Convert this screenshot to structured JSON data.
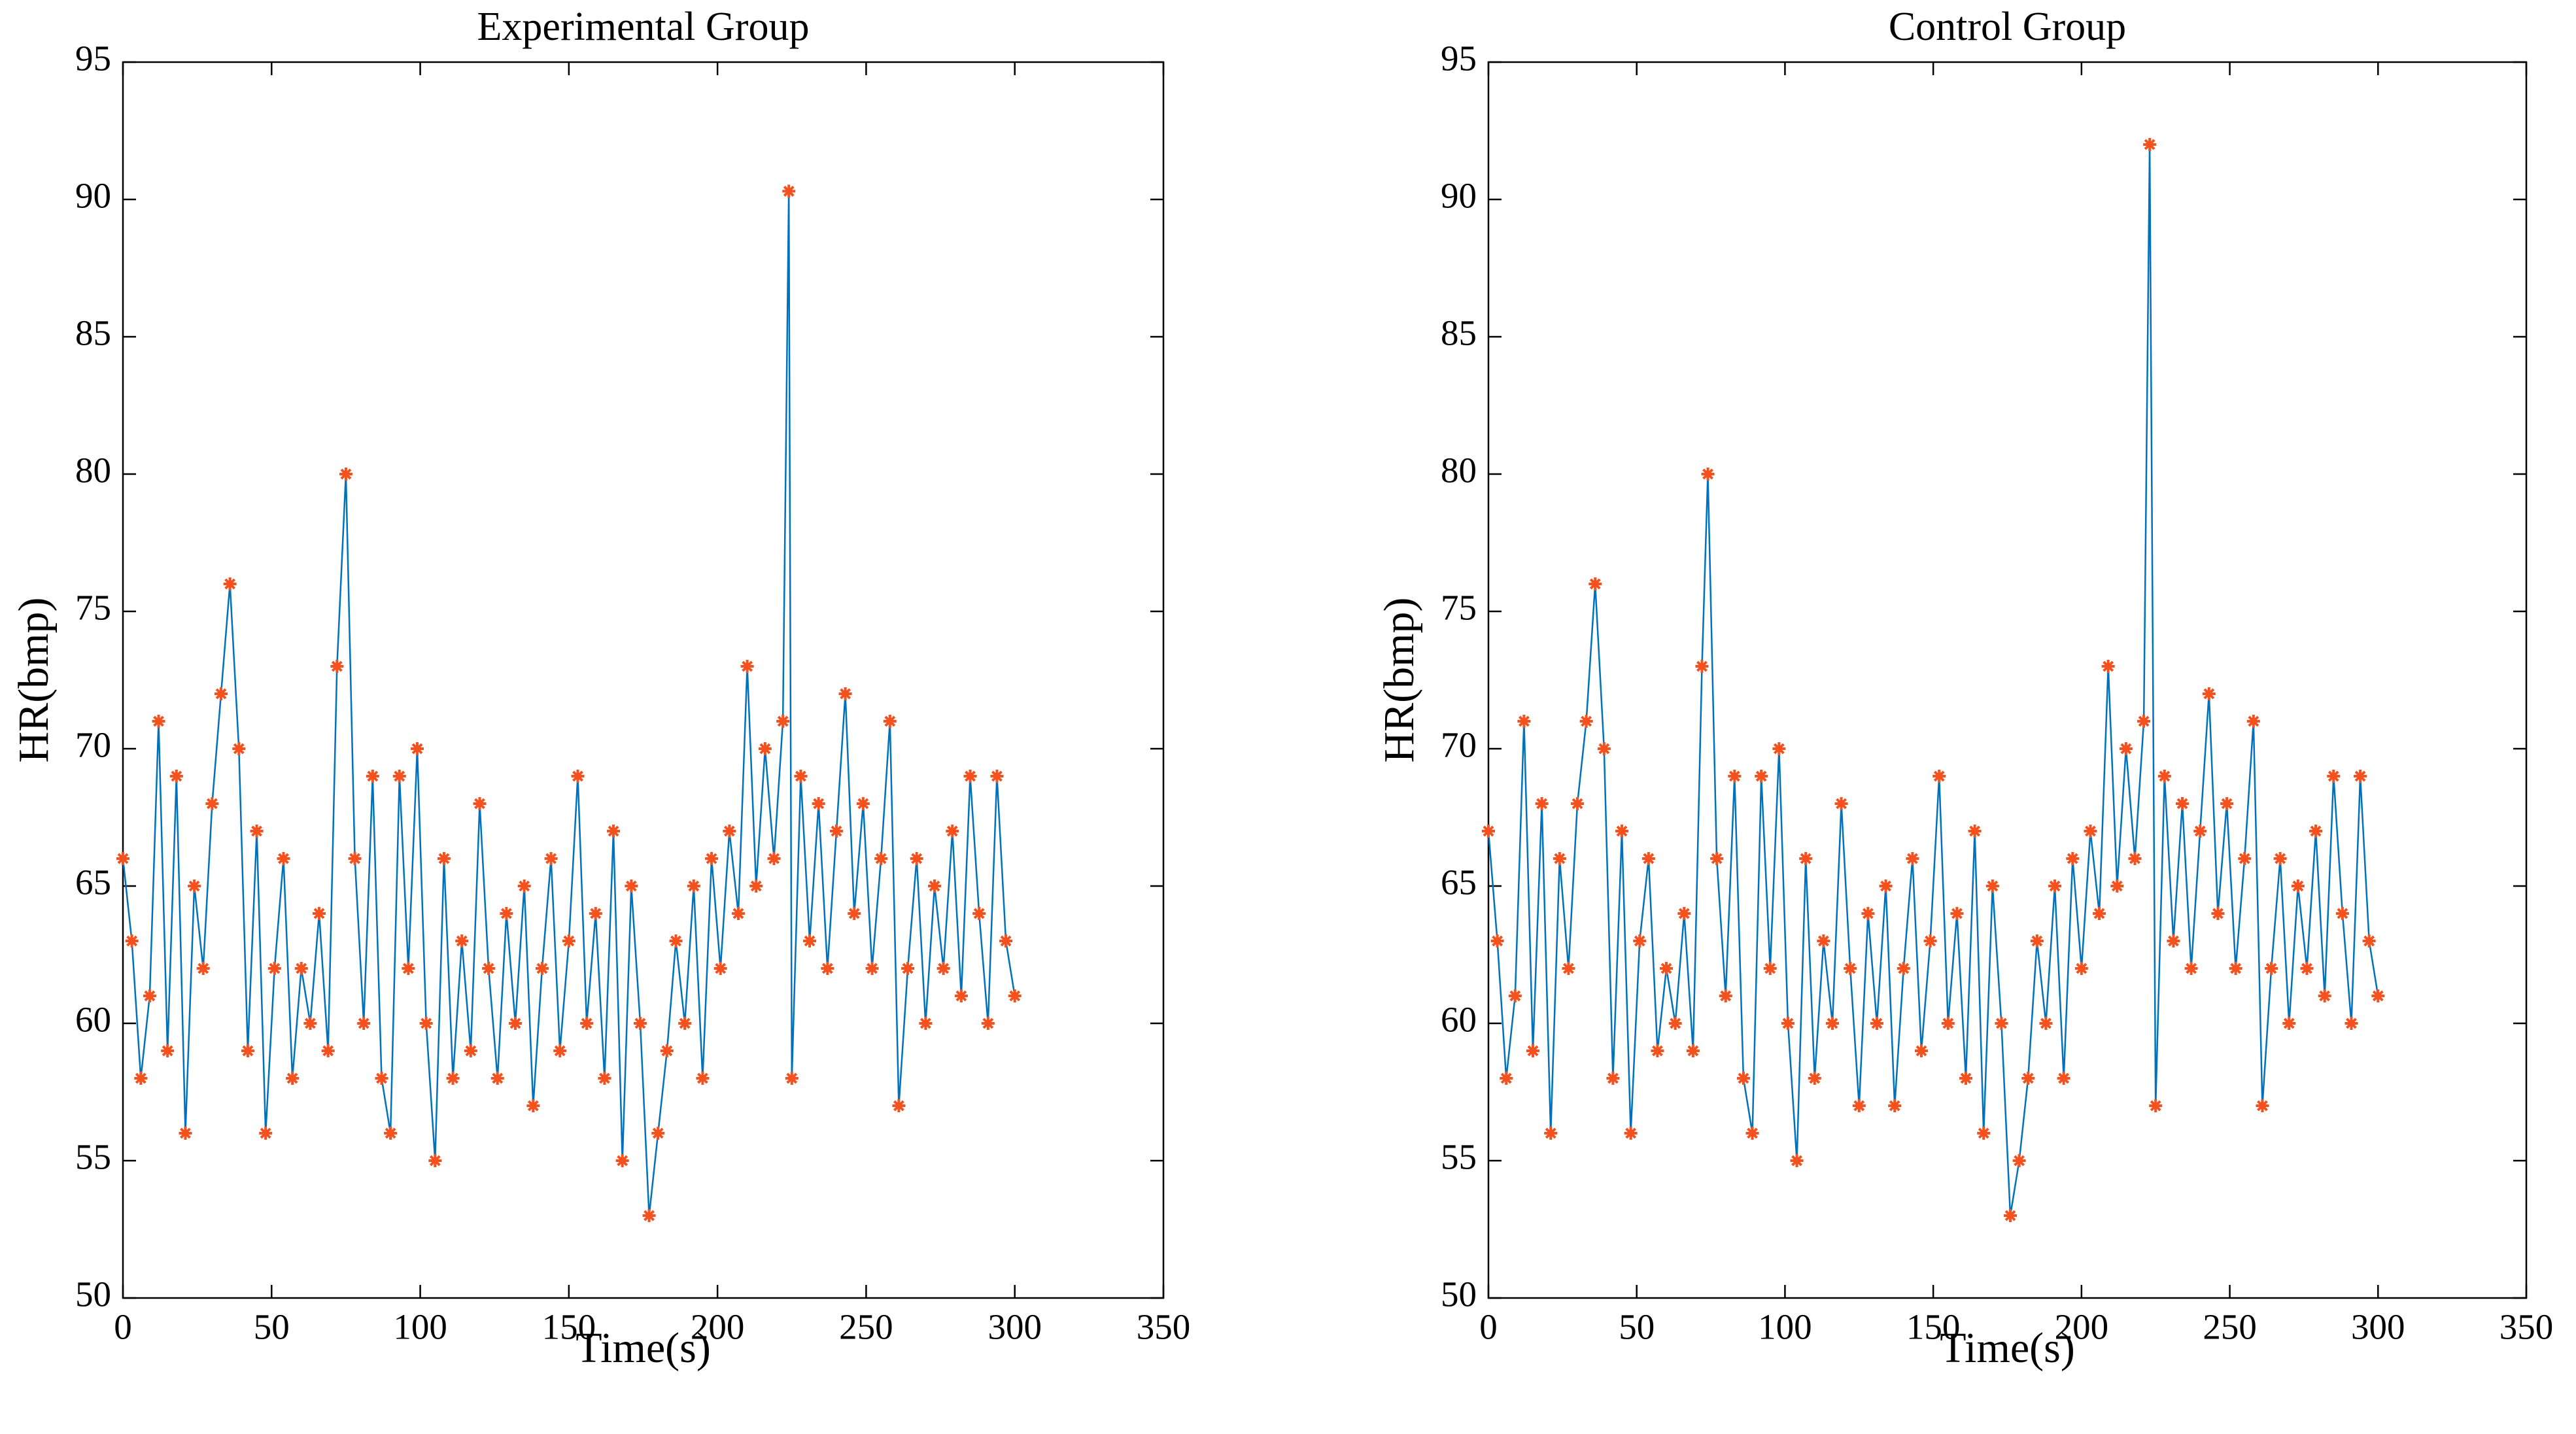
{
  "chart_data": [
    {
      "type": "line",
      "title": "Experimental Group",
      "xlabel": "Time(s)",
      "ylabel": "HR(bmp)",
      "xlim": [
        0,
        350
      ],
      "xticks": [
        0,
        50,
        100,
        150,
        200,
        250,
        300,
        350
      ],
      "ylim": [
        50,
        95
      ],
      "yticks": [
        50,
        55,
        60,
        65,
        70,
        75,
        80,
        85,
        90,
        95
      ],
      "x": [
        0,
        3,
        6,
        9,
        12,
        15,
        18,
        21,
        24,
        27,
        30,
        33,
        36,
        39,
        42,
        45,
        48,
        51,
        54,
        57,
        60,
        63,
        66,
        69,
        72,
        75,
        78,
        81,
        84,
        87,
        90,
        93,
        96,
        99,
        102,
        105,
        108,
        111,
        114,
        117,
        120,
        123,
        126,
        129,
        132,
        135,
        138,
        141,
        144,
        147,
        150,
        153,
        156,
        159,
        162,
        165,
        168,
        171,
        174,
        177,
        180,
        183,
        186,
        189,
        192,
        195,
        198,
        201,
        204,
        207,
        210,
        213,
        216,
        219,
        222,
        224,
        225,
        228,
        231,
        234,
        237,
        240,
        243,
        246,
        249,
        252,
        255,
        258,
        261,
        264,
        267,
        270,
        273,
        276,
        279,
        282,
        285,
        288,
        291,
        294,
        297,
        300
      ],
      "series": [
        {
          "color": "#0072bd",
          "marker_color": "#f4511e",
          "values": [
            66,
            63,
            58,
            61,
            71,
            59,
            69,
            56,
            65,
            62,
            68,
            72,
            76,
            70,
            59,
            67,
            56,
            62,
            66,
            58,
            62,
            60,
            64,
            59,
            73,
            80,
            66,
            60,
            69,
            58,
            56,
            69,
            62,
            70,
            60,
            55,
            66,
            58,
            63,
            59,
            68,
            62,
            58,
            64,
            60,
            65,
            57,
            62,
            66,
            59,
            63,
            69,
            60,
            64,
            58,
            67,
            55,
            65,
            60,
            53,
            56,
            59,
            63,
            60,
            65,
            58,
            66,
            62,
            67,
            64,
            73,
            65,
            70,
            66,
            71,
            90.3,
            58,
            69,
            63,
            68,
            62,
            67,
            72,
            64,
            68,
            62,
            66,
            71,
            57,
            62,
            66,
            60,
            65,
            62,
            67,
            61,
            69,
            64,
            60,
            69,
            63,
            61
          ]
        }
      ]
    },
    {
      "type": "line",
      "title": "Control Group",
      "xlabel": "Time(s)",
      "ylabel": "HR(bmp)",
      "xlim": [
        0,
        350
      ],
      "xticks": [
        0,
        50,
        100,
        150,
        200,
        250,
        300,
        350
      ],
      "ylim": [
        50,
        95
      ],
      "yticks": [
        50,
        55,
        60,
        65,
        70,
        75,
        80,
        85,
        90,
        95
      ],
      "x": [
        0,
        3,
        6,
        9,
        12,
        15,
        18,
        21,
        24,
        27,
        30,
        33,
        36,
        39,
        42,
        45,
        48,
        51,
        54,
        57,
        60,
        63,
        66,
        69,
        72,
        74,
        77,
        80,
        83,
        86,
        89,
        92,
        95,
        98,
        101,
        104,
        107,
        110,
        113,
        116,
        119,
        122,
        125,
        128,
        131,
        134,
        137,
        140,
        143,
        146,
        149,
        152,
        155,
        158,
        161,
        164,
        167,
        170,
        173,
        176,
        179,
        182,
        185,
        188,
        191,
        194,
        197,
        200,
        203,
        206,
        209,
        212,
        215,
        218,
        221,
        223,
        225,
        228,
        231,
        234,
        237,
        240,
        243,
        246,
        249,
        252,
        255,
        258,
        261,
        264,
        267,
        270,
        273,
        276,
        279,
        282,
        285,
        288,
        291,
        294,
        297,
        300
      ],
      "series": [
        {
          "color": "#0072bd",
          "marker_color": "#f4511e",
          "values": [
            67,
            63,
            58,
            61,
            71,
            59,
            68,
            56,
            66,
            62,
            68,
            71,
            76,
            70,
            58,
            67,
            56,
            63,
            66,
            59,
            62,
            60,
            64,
            59,
            73,
            80,
            66,
            61,
            69,
            58,
            56,
            69,
            62,
            70,
            60,
            55,
            66,
            58,
            63,
            60,
            68,
            62,
            57,
            64,
            60,
            65,
            57,
            62,
            66,
            59,
            63,
            69,
            60,
            64,
            58,
            67,
            56,
            65,
            60,
            53,
            55,
            58,
            63,
            60,
            65,
            58,
            66,
            62,
            67,
            64,
            73,
            65,
            70,
            66,
            71,
            92,
            57,
            69,
            63,
            68,
            62,
            67,
            72,
            64,
            68,
            62,
            66,
            71,
            57,
            62,
            66,
            60,
            65,
            62,
            67,
            61,
            69,
            64,
            60,
            69,
            63,
            61
          ]
        }
      ]
    }
  ]
}
